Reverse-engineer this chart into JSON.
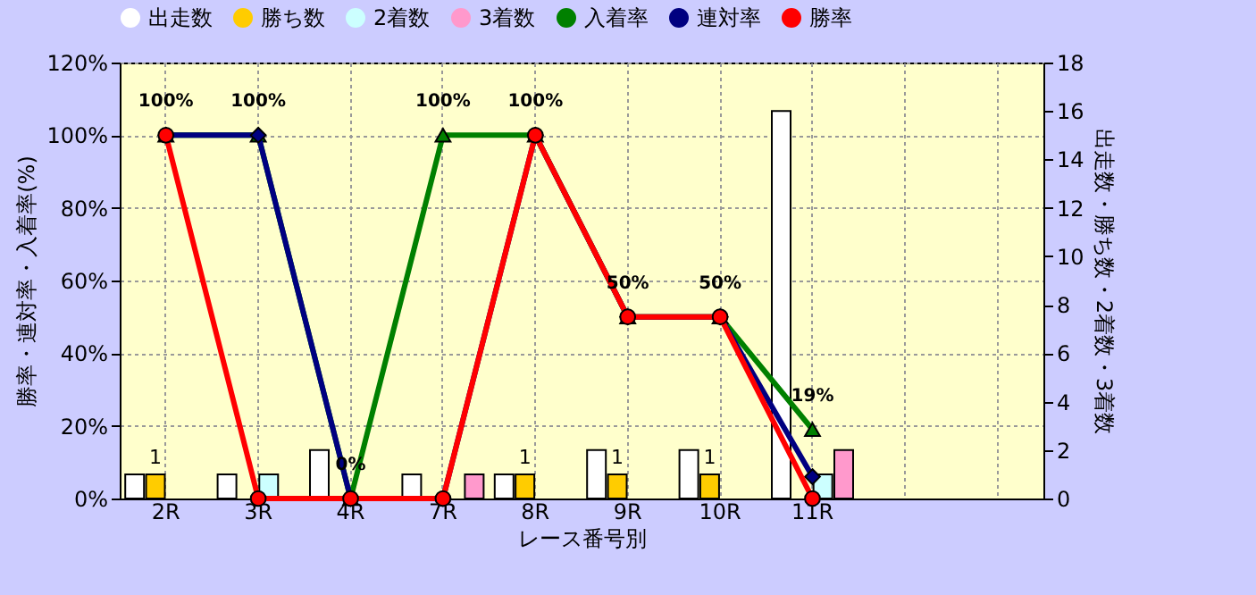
{
  "chart_data": {
    "type": "bar",
    "categories": [
      "2R",
      "3R",
      "4R",
      "7R",
      "8R",
      "9R",
      "10R",
      "11R",
      null,
      null
    ],
    "xlabel": "レース番号別",
    "ylabel": "勝率・連対率・入着率(%)",
    "y2label": "出走数・勝ち数・2着数・3着数",
    "ylim": [
      0,
      120
    ],
    "yticks": [
      {
        "value": 0,
        "label": "0%"
      },
      {
        "value": 20,
        "label": "20%"
      },
      {
        "value": 40,
        "label": "40%"
      },
      {
        "value": 60,
        "label": "60%"
      },
      {
        "value": 80,
        "label": "80%"
      },
      {
        "value": 100,
        "label": "100%"
      },
      {
        "value": 120,
        "label": "120%"
      }
    ],
    "y2lim": [
      0,
      18
    ],
    "y2ticks": [
      0,
      2,
      4,
      6,
      8,
      10,
      12,
      14,
      16,
      18
    ],
    "grid": true,
    "legend": "top",
    "line_style": "solid",
    "series": [
      {
        "name": "出走数",
        "color": "#ffffff",
        "axis": "y2",
        "values": [
          1,
          1,
          2,
          1,
          1,
          2,
          2,
          16,
          null,
          null
        ]
      },
      {
        "name": "勝ち数",
        "color": "#ffcc00",
        "axis": "y2",
        "values": [
          1,
          0,
          0,
          0,
          1,
          1,
          1,
          0,
          null,
          null
        ],
        "value_labels": [
          "1",
          null,
          null,
          null,
          "1",
          "1",
          "1",
          null,
          null,
          null
        ]
      },
      {
        "name": "2着数",
        "color": "#ccffff",
        "axis": "y2",
        "values": [
          0,
          1,
          0,
          0,
          0,
          0,
          0,
          1,
          null,
          null
        ]
      },
      {
        "name": "3着数",
        "color": "#ff99cc",
        "axis": "y2",
        "values": [
          0,
          0,
          0,
          1,
          0,
          0,
          0,
          2,
          null,
          null
        ]
      },
      {
        "name": "入着率",
        "type": "line",
        "color": "#008000",
        "axis": "y",
        "marker": "triangle",
        "values": [
          100,
          100,
          0,
          100,
          100,
          50,
          50,
          19,
          null,
          null
        ],
        "value_labels": [
          "100%",
          "100%",
          "0%",
          "100%",
          "100%",
          "50%",
          "50%",
          "19%",
          null,
          null
        ]
      },
      {
        "name": "連対率",
        "type": "line",
        "color": "#000080",
        "axis": "y",
        "marker": "diamond",
        "values": [
          100,
          100,
          0,
          0,
          100,
          50,
          50,
          6,
          null,
          null
        ]
      },
      {
        "name": "勝率",
        "type": "line",
        "color": "#ff0000",
        "axis": "y",
        "marker": "circle",
        "values": [
          100,
          0,
          0,
          0,
          100,
          50,
          50,
          0,
          null,
          null
        ]
      }
    ]
  }
}
